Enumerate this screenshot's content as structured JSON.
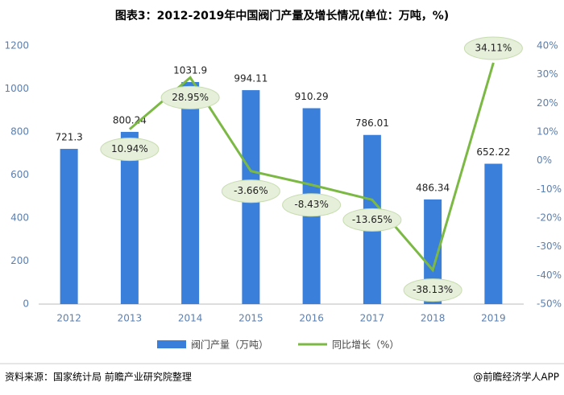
{
  "chart_data": {
    "type": "bar",
    "title": "图表3：2012-2019年中国阀门产量及增长情况(单位：万吨，%)",
    "categories": [
      "2012",
      "2013",
      "2014",
      "2015",
      "2016",
      "2017",
      "2018",
      "2019"
    ],
    "series": [
      {
        "name": "阀门产量（万吨）",
        "type": "bar",
        "color": "#3a7fd9",
        "values": [
          721.3,
          800.24,
          1031.9,
          994.11,
          910.29,
          786.01,
          486.34,
          652.22
        ]
      },
      {
        "name": "同比增长（%）",
        "type": "line",
        "axis": "y2",
        "color": "#7cb944",
        "values": [
          null,
          10.94,
          28.95,
          -3.66,
          -8.43,
          -13.65,
          -38.13,
          34.11
        ],
        "value_labels": [
          null,
          "10.94%",
          "28.95%",
          "-3.66%",
          "-8.43%",
          "-13.65%",
          "-38.13%",
          "34.11%"
        ]
      }
    ],
    "ylim": [
      0,
      1200
    ],
    "yticks": [
      0,
      200,
      400,
      600,
      800,
      1000,
      1200
    ],
    "y2lim": [
      -50,
      40
    ],
    "y2ticks": [
      {
        "value": -50,
        "label": "-50%"
      },
      {
        "value": -40,
        "label": "-40%"
      },
      {
        "value": -30,
        "label": "-30%"
      },
      {
        "value": -20,
        "label": "-20%"
      },
      {
        "value": -10,
        "label": "-10%"
      },
      {
        "value": 0,
        "label": "0%"
      },
      {
        "value": 10,
        "label": "10%"
      },
      {
        "value": 20,
        "label": "20%"
      },
      {
        "value": 30,
        "label": "30%"
      },
      {
        "value": 40,
        "label": "40%"
      }
    ],
    "source": "资料来源：国家统计局 前瞻产业研究院整理",
    "credit": "@前瞻经济学人APP"
  }
}
